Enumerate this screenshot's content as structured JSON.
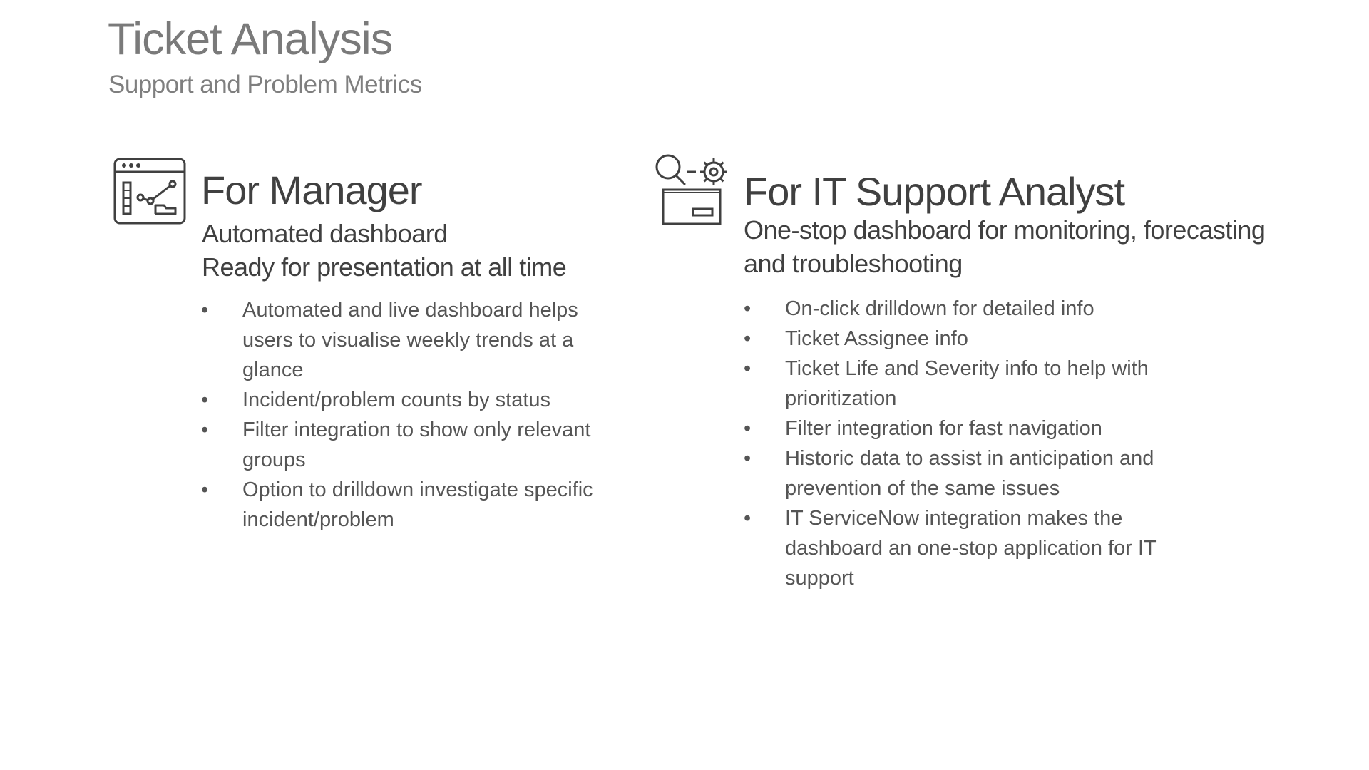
{
  "header": {
    "title": "Ticket Analysis",
    "subtitle": "Support and Problem Metrics"
  },
  "manager": {
    "icon": "dashboard-window-icon",
    "heading": "For Manager",
    "sub_lines": [
      "Automated dashboard",
      "Ready for presentation at all time"
    ],
    "bullets": [
      "Automated and live dashboard helps users to visualise weekly trends at a glance",
      "Incident/problem counts by status",
      "Filter integration to show only relevant groups",
      "Option to drilldown investigate specific incident/problem"
    ]
  },
  "analyst": {
    "icon": "search-gear-inbox-icon",
    "heading": "For IT Support Analyst",
    "sub_lines": [
      "One-stop dashboard for monitoring, forecasting",
      "and troubleshooting"
    ],
    "bullets": [
      "On-click drilldown for detailed info",
      "Ticket Assignee info",
      "Ticket Life and Severity info to help with prioritization",
      "Filter integration for fast navigation",
      "Historic data to assist in anticipation and prevention of the same issues",
      "IT ServiceNow integration makes the dashboard an one-stop application for IT support"
    ]
  },
  "bullet_glyph": "•"
}
